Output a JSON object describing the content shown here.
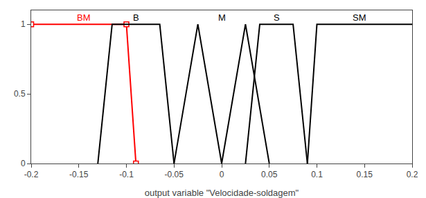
{
  "chart_data": {
    "type": "line",
    "xlabel": "output variable \"Velocidade-soldagem\"",
    "xlim": [
      -0.2,
      0.2
    ],
    "xticks": [
      -0.2,
      -0.15,
      -0.1,
      -0.05,
      0,
      0.05,
      0.1,
      0.15,
      0.2
    ],
    "ylim": [
      0,
      1.1
    ],
    "yticks": [
      0,
      0.5,
      1
    ],
    "grid": false,
    "series": [
      {
        "name": "BM",
        "color": "red",
        "marker": "square",
        "x": [
          -0.2,
          -0.1,
          -0.09
        ],
        "values": [
          1.0,
          1.0,
          0.0
        ]
      },
      {
        "name": "B",
        "color": "black",
        "x": [
          -0.13,
          -0.115,
          -0.065,
          -0.05
        ],
        "values": [
          0.0,
          1.0,
          1.0,
          0.0
        ]
      },
      {
        "name": "M",
        "color": "black",
        "x": [
          -0.05,
          -0.025,
          0.0,
          0.025,
          0.05
        ],
        "values": [
          0.0,
          1.0,
          0.0,
          1.0,
          0.0
        ]
      },
      {
        "name": "S",
        "color": "black",
        "x": [
          0.025,
          0.04,
          0.075,
          0.09
        ],
        "values": [
          0.0,
          1.0,
          1.0,
          0.0
        ]
      },
      {
        "name": "SM",
        "color": "black",
        "x": [
          0.09,
          0.1,
          0.2
        ],
        "values": [
          0.0,
          1.0,
          1.0
        ]
      }
    ]
  }
}
